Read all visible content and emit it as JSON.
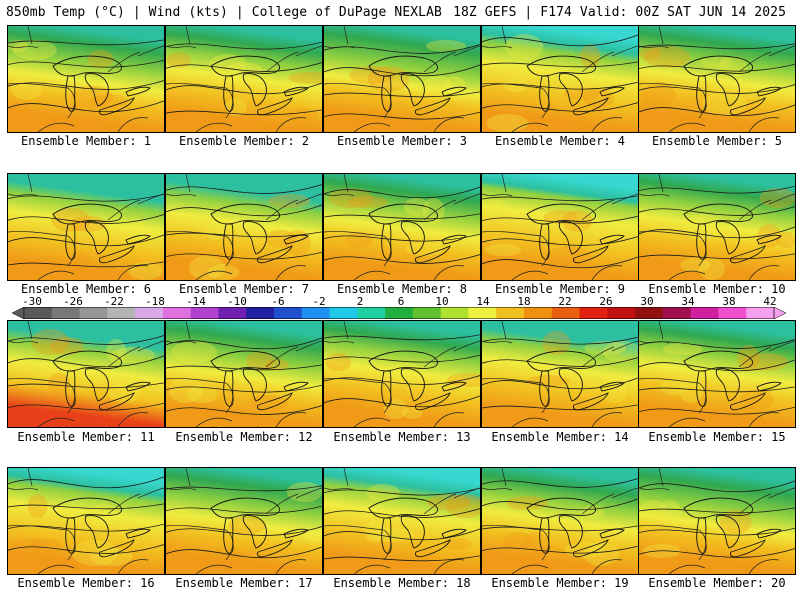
{
  "header": {
    "left": "850mb Temp (°C) | Wind (kts) | College of DuPage NEXLAB",
    "right": "18Z GEFS | F174 Valid: 00Z SAT JUN 14 2025"
  },
  "panels": [
    {
      "label": "Ensemble Member: 1",
      "cold": 0.45,
      "warm": 0.55
    },
    {
      "label": "Ensemble Member: 2",
      "cold": 0.55,
      "warm": 0.45
    },
    {
      "label": "Ensemble Member: 3",
      "cold": 0.35,
      "warm": 0.6
    },
    {
      "label": "Ensemble Member: 4",
      "cold": 0.75,
      "warm": 0.4
    },
    {
      "label": "Ensemble Member: 5",
      "cold": 0.5,
      "warm": 0.6
    },
    {
      "label": "Ensemble Member: 6",
      "cold": 0.7,
      "warm": 0.45
    },
    {
      "label": "Ensemble Member: 7",
      "cold": 0.65,
      "warm": 0.5
    },
    {
      "label": "Ensemble Member: 8",
      "cold": 0.5,
      "warm": 0.55
    },
    {
      "label": "Ensemble Member: 9",
      "cold": 0.85,
      "warm": 0.4
    },
    {
      "label": "Ensemble Member: 10",
      "cold": 0.55,
      "warm": 0.5
    },
    {
      "label": "Ensemble Member: 11",
      "cold": 0.65,
      "warm": 0.75
    },
    {
      "label": "Ensemble Member: 12",
      "cold": 0.45,
      "warm": 0.55
    },
    {
      "label": "Ensemble Member: 13",
      "cold": 0.6,
      "warm": 0.5
    },
    {
      "label": "Ensemble Member: 14",
      "cold": 0.7,
      "warm": 0.45
    },
    {
      "label": "Ensemble Member: 15",
      "cold": 0.55,
      "warm": 0.5
    },
    {
      "label": "Ensemble Member: 16",
      "cold": 0.8,
      "warm": 0.5
    },
    {
      "label": "Ensemble Member: 17",
      "cold": 0.45,
      "warm": 0.55
    },
    {
      "label": "Ensemble Member: 18",
      "cold": 0.75,
      "warm": 0.5
    },
    {
      "label": "Ensemble Member: 19",
      "cold": 0.55,
      "warm": 0.45
    },
    {
      "label": "Ensemble Member: 20",
      "cold": 0.4,
      "warm": 0.55
    }
  ],
  "colorbar": {
    "ticks": [
      "-30",
      "-26",
      "-22",
      "-18",
      "-14",
      "-10",
      "-6",
      "-2",
      "2",
      "6",
      "10",
      "14",
      "18",
      "22",
      "26",
      "30",
      "34",
      "38",
      "42"
    ],
    "colors": [
      "#5a5a5a",
      "#787878",
      "#969696",
      "#b4b4b4",
      "#d8a8e8",
      "#e070e0",
      "#b040d0",
      "#7020b0",
      "#2020a0",
      "#2050d0",
      "#2090f0",
      "#20c8e8",
      "#20d0a0",
      "#20b040",
      "#60c030",
      "#b0e030",
      "#f0f040",
      "#f0c020",
      "#f09010",
      "#e86010",
      "#e02010",
      "#c01010",
      "#901010",
      "#a01050",
      "#d020a0",
      "#f050d0",
      "#f8a0f0"
    ],
    "field_colors": {
      "cyan": "#38d8d0",
      "teal": "#2cc0a0",
      "green": "#30a850",
      "lime": "#90d040",
      "yellow": "#f0ec40",
      "gold": "#f2c020",
      "orange": "#f09a18",
      "red": "#e84018"
    }
  }
}
